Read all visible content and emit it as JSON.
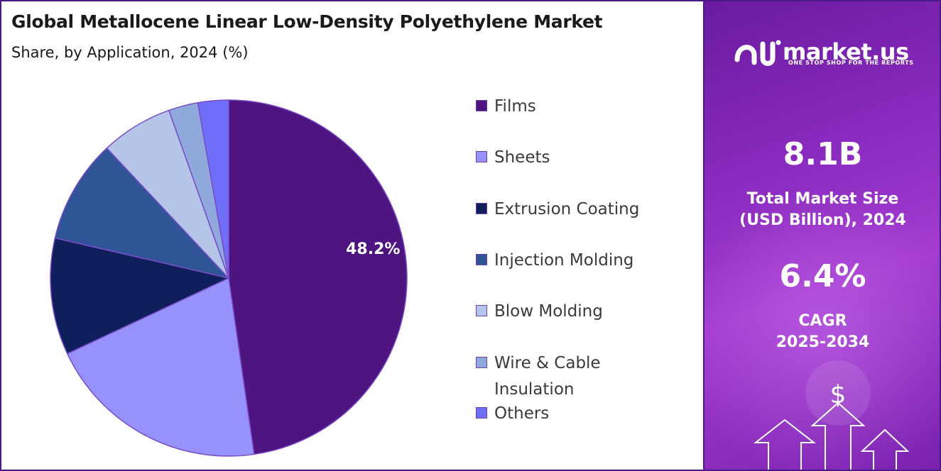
{
  "header": {
    "title": "Global Metallocene Linear Low-Density Polyethylene Market",
    "subtitle": "Share, by Application, 2024 (%)"
  },
  "chart_data": {
    "type": "pie",
    "title": "Global Metallocene Linear Low-Density Polyethylene Market",
    "subtitle": "Share, by Application, 2024 (%)",
    "categories": [
      "Films",
      "Sheets",
      "Extrusion Coating",
      "Injection Molding",
      "Blow Molding",
      "Wire & Cable Insulation",
      "Others"
    ],
    "values": [
      48.2,
      20.5,
      10.7,
      9.5,
      6.6,
      2.7,
      2.8
    ],
    "colors": [
      "#4e1580",
      "#9691fb",
      "#0e1f5b",
      "#2f5597",
      "#b4c5e8",
      "#8fa9dc",
      "#6f6ef8"
    ],
    "data_labels": [
      {
        "category": "Films",
        "text": "48.2%"
      }
    ],
    "legend_position": "right",
    "start_angle_deg": 0,
    "direction": "clockwise"
  },
  "sidebar": {
    "brand": {
      "name": "market.us",
      "tagline": "ONE STOP SHOP FOR THE REPORTS"
    },
    "market_size": {
      "value": "8.1B",
      "label_line1": "Total Market Size",
      "label_line2": "(USD Billion), 2024"
    },
    "cagr": {
      "value": "6.4%",
      "label_line1": "CAGR",
      "label_line2": "2025-2034"
    },
    "icons": [
      "market-us-logo-icon",
      "dollar-icon",
      "up-arrow-icon"
    ]
  }
}
